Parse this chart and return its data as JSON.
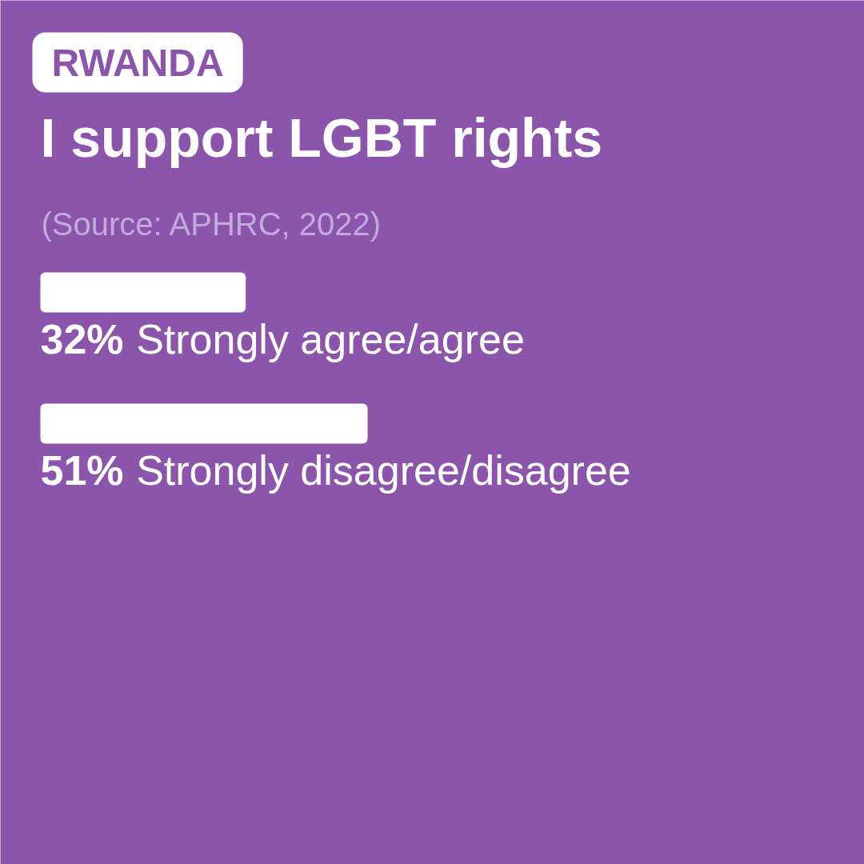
{
  "chart_data": {
    "type": "bar",
    "orientation": "horizontal",
    "title": "I support LGBT rights",
    "subtitle": "RWANDA",
    "annotations": [
      "(Source: APHRC, 2022)"
    ],
    "categories": [
      "Strongly agree/agree",
      "Strongly disagree/disagree"
    ],
    "values": [
      32,
      51
    ],
    "value_labels": [
      "32%",
      "51%"
    ],
    "color": "#ffffff"
  }
}
